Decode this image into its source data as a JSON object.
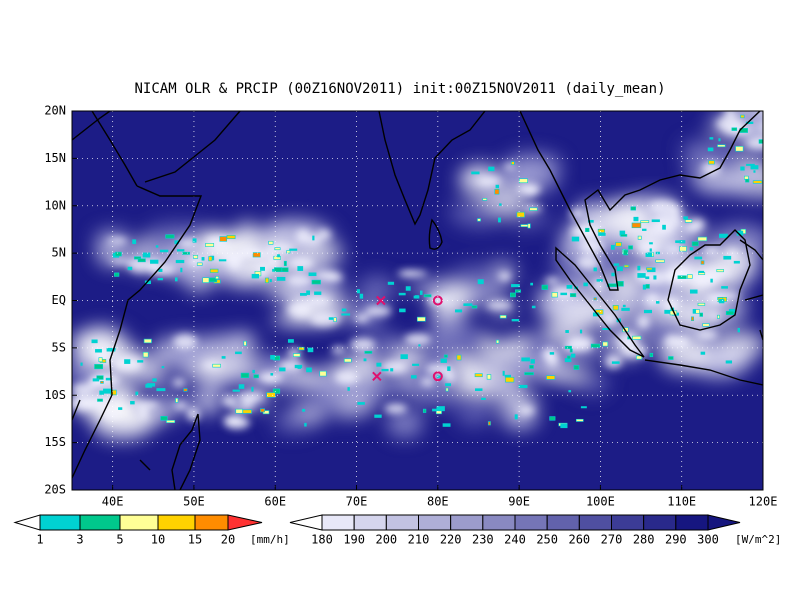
{
  "title": "NICAM OLR & PRCIP (00Z16NOV2011) init:00Z15NOV2011 (daily_mean)",
  "map": {
    "lat_labels": [
      "20N",
      "15N",
      "10N",
      "5N",
      "EQ",
      "5S",
      "10S",
      "15S",
      "20S"
    ],
    "lon_labels": [
      "40E",
      "50E",
      "60E",
      "70E",
      "80E",
      "90E",
      "100E",
      "110E",
      "120E"
    ]
  },
  "precip_bar": {
    "labels": [
      1,
      3,
      5,
      10,
      15,
      20
    ],
    "unit": "[mm/h]"
  },
  "olr_bar": {
    "labels": [
      180,
      190,
      200,
      210,
      220,
      230,
      240,
      250,
      260,
      270,
      280,
      290,
      300
    ],
    "unit": "[W/m^2]"
  }
}
